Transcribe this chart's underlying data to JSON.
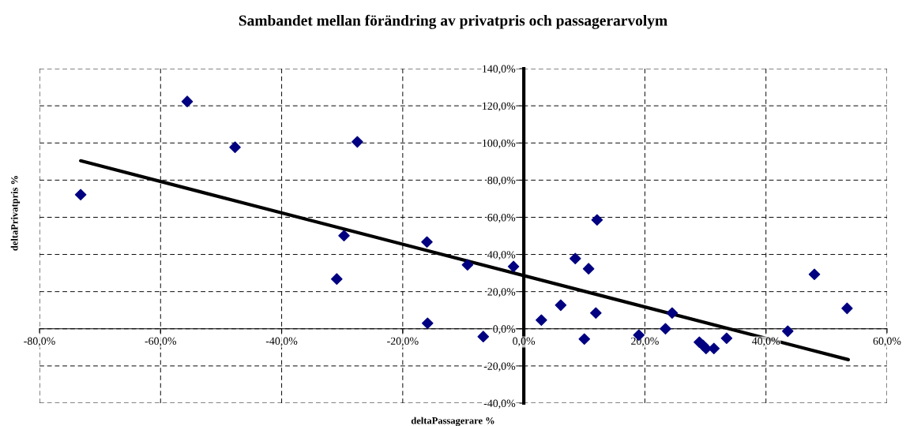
{
  "chart_data": {
    "type": "scatter",
    "title": "Sambandet mellan förändring av privatpris och passagerarvolym",
    "xlabel": "deltaPassagerare %",
    "ylabel": "deltaPrivatpris %",
    "xlim": [
      -80,
      60
    ],
    "ylim": [
      -40,
      140
    ],
    "xticks": [
      {
        "value": -80,
        "label": "-80,0%"
      },
      {
        "value": -60,
        "label": "-60,0%"
      },
      {
        "value": -40,
        "label": "-40,0%"
      },
      {
        "value": -20,
        "label": "-20,0%"
      },
      {
        "value": 0,
        "label": "0,0%"
      },
      {
        "value": 20,
        "label": "20,0%"
      },
      {
        "value": 40,
        "label": "40,0%"
      },
      {
        "value": 60,
        "label": "60,0%"
      }
    ],
    "yticks": [
      {
        "value": -40,
        "label": "-40,0%"
      },
      {
        "value": -20,
        "label": "-20,0%"
      },
      {
        "value": 0,
        "label": "0,0%"
      },
      {
        "value": 20,
        "label": "20,0%"
      },
      {
        "value": 40,
        "label": "40,0%"
      },
      {
        "value": 60,
        "label": "60,0%"
      },
      {
        "value": 80,
        "label": "80,0%"
      },
      {
        "value": 100,
        "label": "100,0%"
      },
      {
        "value": 120,
        "label": "120,0%"
      },
      {
        "value": 140,
        "label": "140,0%"
      }
    ],
    "grid": true,
    "series": [
      {
        "type": "scatter",
        "color": "#000080",
        "marker": "diamond",
        "x": [
          -73.2,
          -55.6,
          -47.7,
          -27.5,
          -29.7,
          -30.9,
          -16.0,
          -15.9,
          -9.3,
          -6.7,
          -1.7,
          2.9,
          6.1,
          8.5,
          10.0,
          10.7,
          12.1,
          11.9,
          19.0,
          23.4,
          24.5,
          29.0,
          29.6,
          30.1,
          31.4,
          33.5,
          43.6,
          48.0,
          53.4
        ],
        "values": [
          72.2,
          122.3,
          97.7,
          100.6,
          50.1,
          26.8,
          46.7,
          3.0,
          34.4,
          -4.2,
          33.5,
          4.7,
          12.7,
          37.8,
          -5.5,
          32.3,
          58.6,
          8.5,
          -3.4,
          0,
          8.5,
          -7.2,
          -8.9,
          -10.6,
          -10.6,
          -5.1,
          -1.3,
          29.3,
          11.0
        ]
      },
      {
        "type": "line",
        "color": "#000000",
        "x": [
          -73.2,
          53.6
        ],
        "values": [
          90.4,
          -16.6
        ]
      }
    ]
  }
}
